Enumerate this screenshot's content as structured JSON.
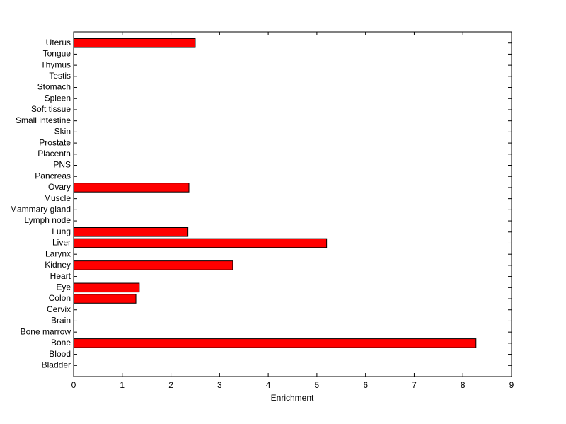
{
  "chart_data": {
    "type": "barh",
    "xlabel": "Enrichment",
    "categories": [
      "Bladder",
      "Blood",
      "Bone",
      "Bone marrow",
      "Brain",
      "Cervix",
      "Colon",
      "Eye",
      "Heart",
      "Kidney",
      "Larynx",
      "Liver",
      "Lung",
      "Lymph node",
      "Mammary gland",
      "Muscle",
      "Ovary",
      "Pancreas",
      "PNS",
      "Placenta",
      "Prostate",
      "Skin",
      "Small intestine",
      "Soft tissue",
      "Spleen",
      "Stomach",
      "Testis",
      "Thymus",
      "Tongue",
      "Uterus"
    ],
    "values": [
      0,
      0,
      8.27,
      0,
      0,
      0,
      1.28,
      1.35,
      0,
      3.27,
      0,
      5.2,
      2.35,
      0,
      0,
      0,
      2.37,
      0,
      0,
      0,
      0,
      0,
      0,
      0,
      0,
      0,
      0,
      0,
      0,
      2.5
    ],
    "color": "#ff0000",
    "xlim": [
      0,
      9
    ],
    "xticks": [
      0,
      1,
      2,
      3,
      4,
      5,
      6,
      7,
      8,
      9
    ],
    "grid": false
  }
}
